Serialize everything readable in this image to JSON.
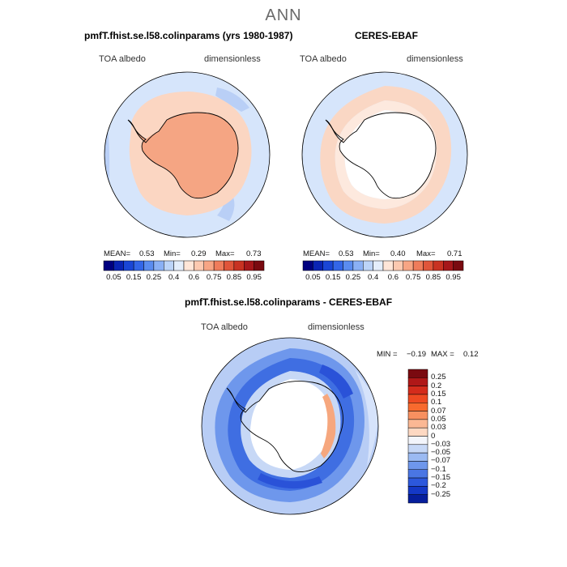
{
  "figure": {
    "title": "ANN"
  },
  "panels": {
    "model": {
      "title": "pmfT.fhist.se.l58.colinparams (yrs 1980-1987)",
      "variable": "TOA albedo",
      "units": "dimensionless",
      "mean_label": "MEAN=",
      "mean": "0.53",
      "min_label": "Min=",
      "min": "0.29",
      "max_label": "Max=",
      "max": "0.73"
    },
    "obs": {
      "title": "CERES-EBAF",
      "variable": "TOA albedo",
      "units": "dimensionless",
      "mean_label": "MEAN=",
      "mean": "0.53",
      "min_label": "Min=",
      "min": "0.40",
      "max_label": "Max=",
      "max": "0.71"
    },
    "diff": {
      "title": "pmfT.fhist.se.l58.colinparams - CERES-EBAF",
      "variable": "TOA albedo",
      "units": "dimensionless",
      "min_label": "MIN =",
      "min": "−0.19",
      "max_label": "MAX =",
      "max": "0.12"
    }
  },
  "chart_data": [
    {
      "type": "heatmap",
      "projection": "south-polar-stereographic",
      "title": "pmfT.fhist.se.l58.colinparams (yrs 1980-1987)",
      "field": "TOA albedo",
      "units": "dimensionless",
      "colorbar_ticks": [
        "0.05",
        "0.15",
        "0.25",
        "0.4",
        "0.6",
        "0.75",
        "0.85",
        "0.95"
      ],
      "colorbar_colors": [
        "#00007f",
        "#0a24b4",
        "#1a46d6",
        "#3366e8",
        "#5a8cf0",
        "#8ab0f5",
        "#bcd4f8",
        "#e4eefb",
        "#ffe6d8",
        "#fcc9b0",
        "#f7a584",
        "#ef7c5b",
        "#e0553a",
        "#c83222",
        "#a6171a",
        "#7a0a10"
      ],
      "mean": 0.53,
      "min": 0.29,
      "max": 0.73
    },
    {
      "type": "heatmap",
      "projection": "south-polar-stereographic",
      "title": "CERES-EBAF",
      "field": "TOA albedo",
      "units": "dimensionless",
      "colorbar_ticks": [
        "0.05",
        "0.15",
        "0.25",
        "0.4",
        "0.6",
        "0.75",
        "0.85",
        "0.95"
      ],
      "colorbar_colors": [
        "#00007f",
        "#0a24b4",
        "#1a46d6",
        "#3366e8",
        "#5a8cf0",
        "#8ab0f5",
        "#bcd4f8",
        "#e4eefb",
        "#ffe6d8",
        "#fcc9b0",
        "#f7a584",
        "#ef7c5b",
        "#e0553a",
        "#c83222",
        "#a6171a",
        "#7a0a10"
      ],
      "mean": 0.53,
      "min": 0.4,
      "max": 0.71
    },
    {
      "type": "heatmap",
      "projection": "south-polar-stereographic",
      "title": "pmfT.fhist.se.l58.colinparams - CERES-EBAF",
      "field": "TOA albedo",
      "units": "dimensionless",
      "colorbar_ticks": [
        "0.25",
        "0.2",
        "0.15",
        "0.1",
        "0.07",
        "0.05",
        "0.03",
        "0",
        "−0.03",
        "−0.05",
        "−0.07",
        "−0.1",
        "−0.15",
        "−0.2",
        "−0.25"
      ],
      "colorbar_colors": [
        "#7a0a10",
        "#b01818",
        "#d42c1c",
        "#ee4a22",
        "#f86a2e",
        "#f89060",
        "#fbb894",
        "#fdd8c2",
        "#f3f5fb",
        "#c7d8f6",
        "#9bbaf2",
        "#6e97ec",
        "#4a76e4",
        "#2c58dc",
        "#1438c6",
        "#061e9c"
      ],
      "min": -0.19,
      "max": 0.12
    }
  ]
}
